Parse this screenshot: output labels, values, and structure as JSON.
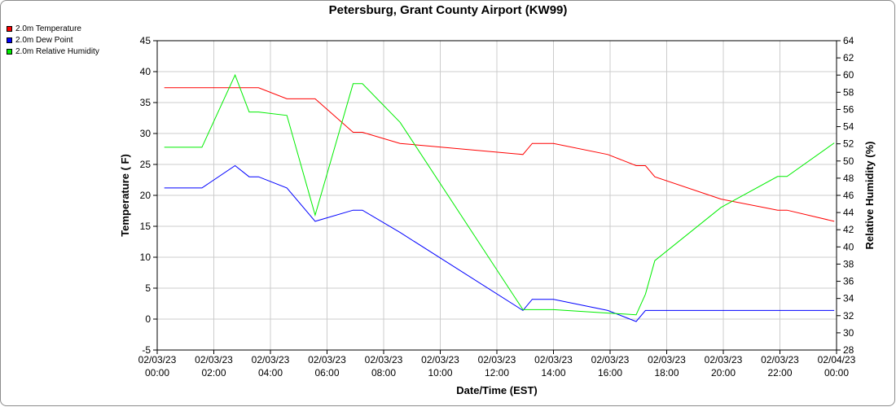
{
  "chart_data": {
    "type": "line",
    "title": "Petersburg, Grant County Airport (KW99)",
    "xlabel": "Date/Time (EST)",
    "ylabel": "Temperature ( F)",
    "y2label": "Relative Humidity (%)",
    "ylim": [
      -5,
      45
    ],
    "y2lim": [
      28,
      64
    ],
    "xlim_hours": [
      0,
      24
    ],
    "yticks": [
      "-5",
      "0",
      "5",
      "10",
      "15",
      "20",
      "25",
      "30",
      "35",
      "40",
      "45"
    ],
    "y2ticks": [
      "28",
      "30",
      "32",
      "34",
      "36",
      "38",
      "40",
      "42",
      "44",
      "46",
      "48",
      "50",
      "52",
      "54",
      "56",
      "58",
      "60",
      "62",
      "64"
    ],
    "xticks": [
      {
        "date": "02/03/23",
        "time": "00:00"
      },
      {
        "date": "02/03/23",
        "time": "02:00"
      },
      {
        "date": "02/03/23",
        "time": "04:00"
      },
      {
        "date": "02/03/23",
        "time": "06:00"
      },
      {
        "date": "02/03/23",
        "time": "08:00"
      },
      {
        "date": "02/03/23",
        "time": "10:00"
      },
      {
        "date": "02/03/23",
        "time": "12:00"
      },
      {
        "date": "02/03/23",
        "time": "14:00"
      },
      {
        "date": "02/03/23",
        "time": "16:00"
      },
      {
        "date": "02/03/23",
        "time": "18:00"
      },
      {
        "date": "02/03/23",
        "time": "20:00"
      },
      {
        "date": "02/03/23",
        "time": "22:00"
      },
      {
        "date": "02/04/23",
        "time": "00:00"
      }
    ],
    "grid": true,
    "legend_position": "top-left",
    "series": [
      {
        "name": "2.0m Temperature",
        "color": "#ff0000",
        "axis": "left",
        "x": [
          0.25,
          1.58,
          2.75,
          3.25,
          3.58,
          4.58,
          5.58,
          6.92,
          7.25,
          8.58,
          12.92,
          13.25,
          14.0,
          15.92,
          16.92,
          17.25,
          17.58,
          19.92,
          21.92,
          22.25,
          23.92
        ],
        "y": [
          37.4,
          37.4,
          37.4,
          37.4,
          37.4,
          35.6,
          35.6,
          30.2,
          30.2,
          28.4,
          26.6,
          28.4,
          28.4,
          26.6,
          24.8,
          24.8,
          23.0,
          19.4,
          17.6,
          17.6,
          15.8
        ]
      },
      {
        "name": "2.0m Dew Point",
        "color": "#0000ff",
        "axis": "left",
        "x": [
          0.25,
          1.58,
          2.75,
          3.25,
          3.58,
          4.58,
          5.58,
          6.92,
          7.25,
          8.58,
          12.92,
          13.25,
          14.0,
          15.92,
          16.92,
          17.25,
          17.58,
          19.92,
          21.92,
          22.25,
          23.92
        ],
        "y": [
          21.2,
          21.2,
          24.8,
          23.0,
          23.0,
          21.2,
          15.8,
          17.6,
          17.6,
          14.0,
          1.4,
          3.2,
          3.2,
          1.4,
          -0.4,
          1.4,
          1.4,
          1.4,
          1.4,
          1.4,
          1.4
        ]
      },
      {
        "name": "2.0m Relative Humidity",
        "color": "#00ee00",
        "axis": "right",
        "x": [
          0.25,
          1.58,
          2.75,
          3.25,
          3.58,
          4.58,
          5.58,
          6.92,
          7.25,
          8.58,
          12.92,
          13.25,
          14.0,
          15.92,
          16.92,
          17.25,
          17.58,
          19.92,
          21.92,
          22.25,
          23.92
        ],
        "y": [
          51.6,
          51.6,
          60.0,
          55.7,
          55.7,
          55.3,
          43.7,
          59.0,
          59.0,
          54.5,
          32.7,
          32.7,
          32.7,
          32.3,
          32.1,
          34.5,
          38.4,
          44.6,
          48.2,
          48.2,
          52.1
        ]
      }
    ]
  }
}
